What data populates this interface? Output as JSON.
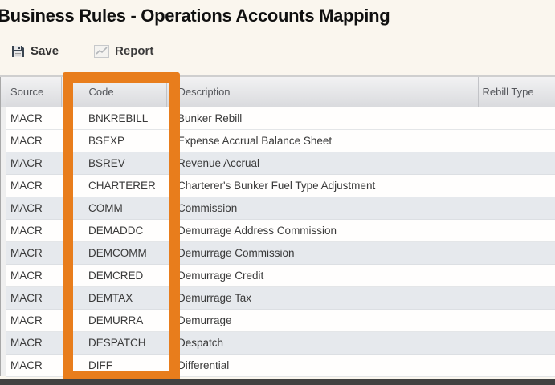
{
  "title": "Business Rules - Operations Accounts Mapping",
  "toolbar": {
    "save_label": "Save",
    "report_label": "Report",
    "save_icon": "floppy-disk",
    "report_icon": "line-chart"
  },
  "table": {
    "columns": [
      "Source",
      "Code",
      "Description",
      "Rebill Type"
    ],
    "rows": [
      {
        "source": "MACR",
        "code": "BNKREBILL",
        "description": "Bunker Rebill",
        "rebill_type": ""
      },
      {
        "source": "MACR",
        "code": "BSEXP",
        "description": "Expense Accrual Balance Sheet",
        "rebill_type": ""
      },
      {
        "source": "MACR",
        "code": "BSREV",
        "description": "Revenue Accrual",
        "rebill_type": ""
      },
      {
        "source": "MACR",
        "code": "CHARTERER",
        "description": "Charterer's Bunker Fuel Type Adjustment",
        "rebill_type": ""
      },
      {
        "source": "MACR",
        "code": "COMM",
        "description": "Commission",
        "rebill_type": ""
      },
      {
        "source": "MACR",
        "code": "DEMADDC",
        "description": "Demurrage Address Commission",
        "rebill_type": ""
      },
      {
        "source": "MACR",
        "code": "DEMCOMM",
        "description": "Demurrage Commission",
        "rebill_type": ""
      },
      {
        "source": "MACR",
        "code": "DEMCRED",
        "description": "Demurrage Credit",
        "rebill_type": ""
      },
      {
        "source": "MACR",
        "code": "DEMTAX",
        "description": "Demurrage Tax",
        "rebill_type": ""
      },
      {
        "source": "MACR",
        "code": "DEMURRA",
        "description": "Demurrage",
        "rebill_type": ""
      },
      {
        "source": "MACR",
        "code": "DESPATCH",
        "description": "Despatch",
        "rebill_type": ""
      },
      {
        "source": "MACR",
        "code": "DIFF",
        "description": "Differential",
        "rebill_type": ""
      }
    ]
  },
  "highlight": {
    "target": "code-column",
    "color": "#e87d1c"
  },
  "colors": {
    "page_background": "#faf6ee",
    "header_background": "#dcdde0",
    "row_stripe": "#e6e9ed",
    "bottom_bar": "#424242",
    "title_text": "#101010"
  }
}
